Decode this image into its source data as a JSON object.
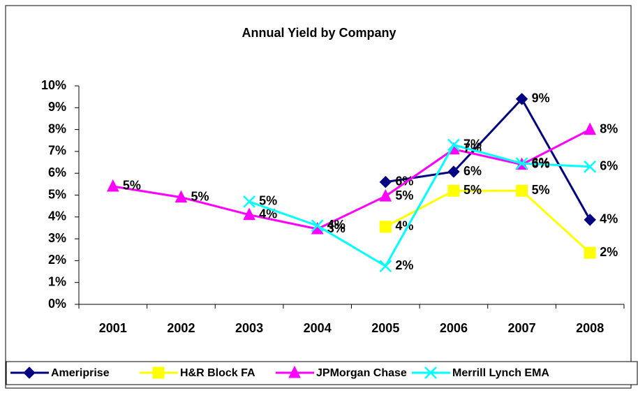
{
  "chart_data": {
    "type": "line",
    "title": "Annual Yield by Company",
    "categories": [
      "2001",
      "2002",
      "2003",
      "2004",
      "2005",
      "2006",
      "2007",
      "2008"
    ],
    "ylim": [
      0,
      10
    ],
    "yticks": [
      {
        "value": 0,
        "label": "0%"
      },
      {
        "value": 1,
        "label": "1%"
      },
      {
        "value": 2,
        "label": "2%"
      },
      {
        "value": 3,
        "label": "3%"
      },
      {
        "value": 4,
        "label": "4%"
      },
      {
        "value": 5,
        "label": "5%"
      },
      {
        "value": 6,
        "label": "6%"
      },
      {
        "value": 7,
        "label": "7%"
      },
      {
        "value": 8,
        "label": "8%"
      },
      {
        "value": 9,
        "label": "9%"
      },
      {
        "value": 10,
        "label": "10%"
      }
    ],
    "legend": "bottom",
    "series": [
      {
        "name": "Ameriprise",
        "color": "#000080",
        "marker": "diamond",
        "values": [
          null,
          null,
          null,
          null,
          5.6,
          6.07,
          9.4,
          3.87
        ],
        "value_labels": [
          null,
          null,
          null,
          null,
          "6%",
          "6%",
          "9%",
          "4%"
        ]
      },
      {
        "name": "H&R Block FA",
        "color": "#ffff00",
        "marker": "square",
        "values": [
          null,
          null,
          null,
          null,
          3.55,
          5.2,
          5.2,
          2.36
        ],
        "value_labels": [
          null,
          null,
          null,
          null,
          "4%",
          "5%",
          "5%",
          "2%"
        ]
      },
      {
        "name": "JPMorgan Chase",
        "color": "#ff00ff",
        "marker": "triangle",
        "values": [
          5.4,
          4.9,
          4.1,
          3.45,
          4.95,
          7.1,
          6.4,
          8.0
        ],
        "value_labels": [
          "5%",
          "5%",
          "4%",
          "3%",
          "5%",
          "7%",
          "6%",
          "8%"
        ]
      },
      {
        "name": "Merrill Lynch EMA",
        "color": "#00ffff",
        "marker": "x",
        "values": [
          null,
          null,
          4.7,
          3.6,
          1.75,
          7.3,
          6.45,
          6.3
        ],
        "value_labels": [
          null,
          null,
          "5%",
          "4%",
          "2%",
          "7%",
          "6%",
          "6%"
        ]
      }
    ]
  }
}
